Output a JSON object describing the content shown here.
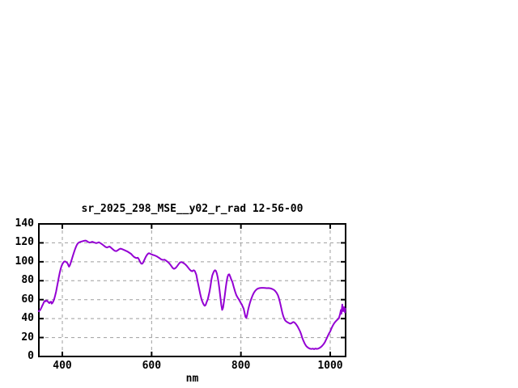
{
  "window": {
    "background": "#ffffff"
  },
  "chart_data": {
    "type": "line",
    "title": "sr_2025_298_MSE__y02_r_rad 12-56-00",
    "xlabel": "nm",
    "ylabel": "",
    "xlim": [
      347.4,
      1034.5
    ],
    "ylim": [
      0,
      140
    ],
    "xticks": [
      400,
      600,
      800,
      1000
    ],
    "x_tick_labels": [
      "400",
      "600",
      "800",
      "1000"
    ],
    "yticks": [
      0,
      20,
      40,
      60,
      80,
      100,
      120,
      140
    ],
    "y_tick_labels": [
      "0",
      "20",
      "40",
      "60",
      "80",
      "100",
      "120",
      "140"
    ],
    "grid": true,
    "grid_style": "dashed",
    "legend": "none",
    "colors": {
      "line": "#9400D3",
      "grid": "#9e9e9e",
      "border": "#000000",
      "text": "#000000"
    },
    "series": [
      {
        "name": "sr_2025_298_MSE__y02_r_rad",
        "points": [
          [
            347,
            47.8
          ],
          [
            349,
            48.3
          ],
          [
            351,
            49.5
          ],
          [
            353,
            51.5
          ],
          [
            355,
            53.5
          ],
          [
            357,
            55.5
          ],
          [
            359,
            57.5
          ],
          [
            361,
            58.8
          ],
          [
            363,
            58.2
          ],
          [
            365,
            59.2
          ],
          [
            367,
            58.4
          ],
          [
            369,
            57.0
          ],
          [
            371,
            56.3
          ],
          [
            373,
            57.6
          ],
          [
            375,
            57.8
          ],
          [
            376,
            55.8
          ],
          [
            378,
            56.6
          ],
          [
            380,
            58.5
          ],
          [
            382,
            61.0
          ],
          [
            384,
            64.5
          ],
          [
            386,
            68.5
          ],
          [
            388,
            73.5
          ],
          [
            390,
            78.3
          ],
          [
            392,
            83.4
          ],
          [
            394,
            88.0
          ],
          [
            396,
            92.0
          ],
          [
            398,
            95.2
          ],
          [
            400,
            97.5
          ],
          [
            402,
            99.0
          ],
          [
            404,
            100.1
          ],
          [
            406,
            100.4
          ],
          [
            408,
            100.0
          ],
          [
            410,
            99.2
          ],
          [
            412,
            98.2
          ],
          [
            414,
            95.8
          ],
          [
            415,
            94.8
          ],
          [
            417,
            96.5
          ],
          [
            419,
            99.3
          ],
          [
            421,
            102.3
          ],
          [
            423,
            105.3
          ],
          [
            425,
            108.3
          ],
          [
            427,
            111.2
          ],
          [
            429,
            113.9
          ],
          [
            431,
            116.3
          ],
          [
            433,
            118.2
          ],
          [
            435,
            119.5
          ],
          [
            437,
            120.4
          ],
          [
            440,
            121.0
          ],
          [
            443,
            121.4
          ],
          [
            446,
            121.8
          ],
          [
            449,
            122.2
          ],
          [
            452,
            122.4
          ],
          [
            455,
            121.8
          ],
          [
            458,
            120.9
          ],
          [
            461,
            120.3
          ],
          [
            464,
            120.6
          ],
          [
            467,
            121.1
          ],
          [
            470,
            120.6
          ],
          [
            473,
            120.1
          ],
          [
            476,
            119.7
          ],
          [
            479,
            120.1
          ],
          [
            482,
            120.6
          ],
          [
            485,
            119.8
          ],
          [
            488,
            118.8
          ],
          [
            491,
            117.8
          ],
          [
            494,
            116.7
          ],
          [
            497,
            115.6
          ],
          [
            500,
            115.1
          ],
          [
            503,
            115.7
          ],
          [
            506,
            116.1
          ],
          [
            509,
            114.9
          ],
          [
            512,
            113.6
          ],
          [
            515,
            112.4
          ],
          [
            518,
            111.5
          ],
          [
            521,
            111.2
          ],
          [
            524,
            112.1
          ],
          [
            527,
            113.2
          ],
          [
            530,
            113.9
          ],
          [
            533,
            113.5
          ],
          [
            536,
            112.9
          ],
          [
            539,
            112.3
          ],
          [
            542,
            111.7
          ],
          [
            545,
            111.1
          ],
          [
            548,
            110.2
          ],
          [
            551,
            109.3
          ],
          [
            554,
            108.3
          ],
          [
            557,
            106.8
          ],
          [
            560,
            105.3
          ],
          [
            563,
            104.5
          ],
          [
            566,
            103.9
          ],
          [
            569,
            104.3
          ],
          [
            571,
            103.1
          ],
          [
            573,
            101.2
          ],
          [
            575,
            99.3
          ],
          [
            577,
            98.0
          ],
          [
            579,
            98.0
          ],
          [
            581,
            99.3
          ],
          [
            583,
            101.3
          ],
          [
            585,
            103.4
          ],
          [
            587,
            105.3
          ],
          [
            589,
            106.9
          ],
          [
            591,
            108.1
          ],
          [
            593,
            108.9
          ],
          [
            595,
            108.9
          ],
          [
            597,
            108.4
          ],
          [
            600,
            107.8
          ],
          [
            603,
            107.2
          ],
          [
            606,
            106.9
          ],
          [
            609,
            106.3
          ],
          [
            612,
            105.6
          ],
          [
            615,
            104.7
          ],
          [
            618,
            103.7
          ],
          [
            621,
            102.7
          ],
          [
            624,
            102.1
          ],
          [
            627,
            102.0
          ],
          [
            629,
            102.3
          ],
          [
            632,
            101.3
          ],
          [
            635,
            100.3
          ],
          [
            638,
            99.1
          ],
          [
            641,
            97.6
          ],
          [
            644,
            95.6
          ],
          [
            647,
            93.6
          ],
          [
            650,
            92.5
          ],
          [
            652,
            92.9
          ],
          [
            655,
            94.1
          ],
          [
            658,
            95.9
          ],
          [
            661,
            97.9
          ],
          [
            664,
            99.4
          ],
          [
            667,
            99.7
          ],
          [
            670,
            99.1
          ],
          [
            673,
            98.2
          ],
          [
            676,
            97.0
          ],
          [
            679,
            95.5
          ],
          [
            682,
            93.7
          ],
          [
            685,
            91.9
          ],
          [
            688,
            90.6
          ],
          [
            691,
            90.0
          ],
          [
            693,
            90.8
          ],
          [
            695,
            91.0
          ],
          [
            697,
            90.1
          ],
          [
            700,
            86.5
          ],
          [
            703,
            79.5
          ],
          [
            706,
            72.5
          ],
          [
            709,
            65.5
          ],
          [
            712,
            60.0
          ],
          [
            715,
            56.3
          ],
          [
            717,
            54.5
          ],
          [
            719,
            53.5
          ],
          [
            721,
            54.4
          ],
          [
            723,
            57.2
          ],
          [
            726,
            60.6
          ],
          [
            728,
            64.8
          ],
          [
            730,
            69.1
          ],
          [
            732,
            74.5
          ],
          [
            734,
            81.0
          ],
          [
            736,
            85.6
          ],
          [
            738,
            88.3
          ],
          [
            740,
            90.2
          ],
          [
            742,
            91.1
          ],
          [
            744,
            90.3
          ],
          [
            746,
            87.7
          ],
          [
            748,
            83.5
          ],
          [
            750,
            77.7
          ],
          [
            752,
            70.5
          ],
          [
            754,
            62.5
          ],
          [
            756,
            54.5
          ],
          [
            758,
            49.2
          ],
          [
            760,
            51.5
          ],
          [
            762,
            58.0
          ],
          [
            764,
            64.9
          ],
          [
            766,
            72.5
          ],
          [
            768,
            79.1
          ],
          [
            770,
            84.0
          ],
          [
            772,
            86.5
          ],
          [
            774,
            86.7
          ],
          [
            776,
            84.5
          ],
          [
            778,
            81.8
          ],
          [
            781,
            78.5
          ],
          [
            784,
            73.4
          ],
          [
            787,
            68.5
          ],
          [
            790,
            64.5
          ],
          [
            793,
            62.0
          ],
          [
            795,
            60.6
          ],
          [
            798,
            58.1
          ],
          [
            800,
            56.2
          ],
          [
            802,
            54.9
          ],
          [
            804,
            52.5
          ],
          [
            806,
            50.6
          ],
          [
            808,
            46.5
          ],
          [
            810,
            42.1
          ],
          [
            812,
            40.7
          ],
          [
            814,
            44.0
          ],
          [
            816,
            49.0
          ],
          [
            818,
            52.8
          ],
          [
            820,
            56.3
          ],
          [
            823,
            60.5
          ],
          [
            826,
            64.3
          ],
          [
            829,
            67.2
          ],
          [
            832,
            69.3
          ],
          [
            835,
            70.8
          ],
          [
            838,
            71.7
          ],
          [
            842,
            72.2
          ],
          [
            846,
            72.5
          ],
          [
            850,
            72.5
          ],
          [
            854,
            72.4
          ],
          [
            858,
            72.1
          ],
          [
            862,
            72.2
          ],
          [
            866,
            72.0
          ],
          [
            870,
            71.3
          ],
          [
            874,
            70.3
          ],
          [
            877,
            69.1
          ],
          [
            880,
            67.2
          ],
          [
            883,
            64.6
          ],
          [
            885,
            61.8
          ],
          [
            887,
            58.3
          ],
          [
            889,
            54.3
          ],
          [
            891,
            50.0
          ],
          [
            893,
            45.8
          ],
          [
            895,
            42.3
          ],
          [
            897,
            39.9
          ],
          [
            899,
            38.2
          ],
          [
            901,
            37.2
          ],
          [
            904,
            36.2
          ],
          [
            907,
            35.4
          ],
          [
            910,
            34.7
          ],
          [
            913,
            35.0
          ],
          [
            916,
            36.1
          ],
          [
            918,
            36.4
          ],
          [
            921,
            35.4
          ],
          [
            924,
            33.8
          ],
          [
            927,
            31.7
          ],
          [
            929,
            29.8
          ],
          [
            932,
            27.0
          ],
          [
            935,
            23.5
          ],
          [
            937,
            20.2
          ],
          [
            940,
            16.6
          ],
          [
            943,
            13.6
          ],
          [
            946,
            11.2
          ],
          [
            949,
            9.8
          ],
          [
            952,
            8.8
          ],
          [
            955,
            8.2
          ],
          [
            958,
            7.9
          ],
          [
            961,
            8.3
          ],
          [
            964,
            7.8
          ],
          [
            967,
            8.4
          ],
          [
            970,
            8.0
          ],
          [
            973,
            8.3
          ],
          [
            976,
            9.0
          ],
          [
            979,
            9.9
          ],
          [
            982,
            11.2
          ],
          [
            985,
            12.9
          ],
          [
            988,
            15.1
          ],
          [
            991,
            18.0
          ],
          [
            994,
            21.1
          ],
          [
            997,
            24.0
          ],
          [
            1000,
            26.5
          ],
          [
            1003,
            29.8
          ],
          [
            1006,
            32.8
          ],
          [
            1009,
            35.1
          ],
          [
            1012,
            36.9
          ],
          [
            1015,
            38.3
          ],
          [
            1018,
            39.7
          ],
          [
            1020,
            41.2
          ],
          [
            1022,
            44.6
          ],
          [
            1024,
            49.2
          ],
          [
            1025,
            45.1
          ],
          [
            1027,
            54.9
          ],
          [
            1029,
            47.8
          ],
          [
            1031,
            52.1
          ],
          [
            1033,
            46.4
          ],
          [
            1034,
            50.6
          ]
        ]
      }
    ]
  }
}
